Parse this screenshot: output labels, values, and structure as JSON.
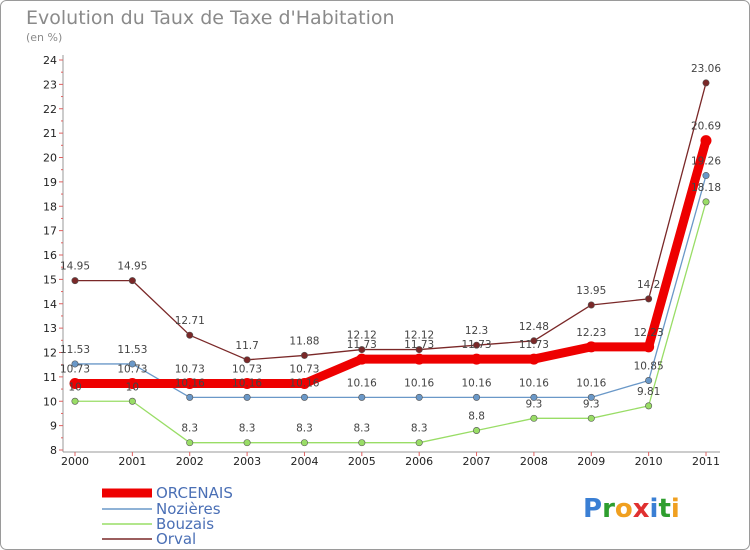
{
  "chart_data": {
    "type": "line",
    "title": "Evolution du Taux de Taxe d'Habitation",
    "subtitle": "(en %)",
    "x": [
      "2000",
      "2001",
      "2002",
      "2003",
      "2004",
      "2005",
      "2006",
      "2007",
      "2008",
      "2009",
      "2010",
      "2011"
    ],
    "ylim": [
      8,
      24
    ],
    "yticks": [
      8,
      9,
      10,
      11,
      12,
      13,
      14,
      15,
      16,
      17,
      18,
      19,
      20,
      21,
      22,
      23,
      24
    ],
    "grid": false,
    "legend_position": "bottom-left",
    "series": [
      {
        "name": "ORCENAIS",
        "color": "#ee0000",
        "values": [
          10.73,
          10.73,
          10.73,
          10.73,
          10.73,
          11.73,
          11.73,
          11.73,
          11.73,
          12.23,
          12.23,
          20.69
        ]
      },
      {
        "name": "Nozières",
        "color": "#6a98c8",
        "values": [
          11.53,
          11.53,
          10.16,
          10.16,
          10.16,
          10.16,
          10.16,
          10.16,
          10.16,
          10.16,
          10.85,
          19.26
        ]
      },
      {
        "name": "Bouzais",
        "color": "#99dd66",
        "values": [
          10,
          10,
          8.3,
          8.3,
          8.3,
          8.3,
          8.3,
          8.8,
          9.3,
          9.3,
          9.81,
          18.18
        ]
      },
      {
        "name": "Orval",
        "color": "#7a2828",
        "values": [
          14.95,
          14.95,
          12.71,
          11.7,
          11.88,
          12.12,
          12.12,
          12.3,
          12.48,
          13.95,
          14.2,
          23.06
        ]
      }
    ],
    "data_labels": [
      [
        "10.73",
        "10.73",
        "10.73",
        "10.73",
        "10.73",
        "11.73",
        "11.73",
        "11.73",
        "11.73",
        "12.23",
        "12.23",
        "20.69"
      ],
      [
        "11.53",
        "11.53",
        "10.16",
        "10.16",
        "10.16",
        "10.16",
        "10.16",
        "10.16",
        "10.16",
        "10.16",
        "10.85",
        "19.26"
      ],
      [
        "10",
        "10",
        "8.3",
        "8.3",
        "8.3",
        "8.3",
        "8.3",
        "8.8",
        "9.3",
        "9.3",
        "9.81",
        "18.18"
      ],
      [
        "14.95",
        "14.95",
        "12.71",
        "11.7",
        "11.88",
        "12.12",
        "12.12",
        "12.3",
        "12.48",
        "13.95",
        "14.2",
        "23.06"
      ]
    ]
  },
  "logo": {
    "text": "Proxiti",
    "letters": [
      "P",
      "r",
      "o",
      "x",
      "i",
      "t",
      "i"
    ],
    "colors": [
      "#3a7fd4",
      "#2e9e2e",
      "#f0a020",
      "#e03030",
      "#3a7fd4",
      "#2e9e2e",
      "#f0a020"
    ]
  }
}
